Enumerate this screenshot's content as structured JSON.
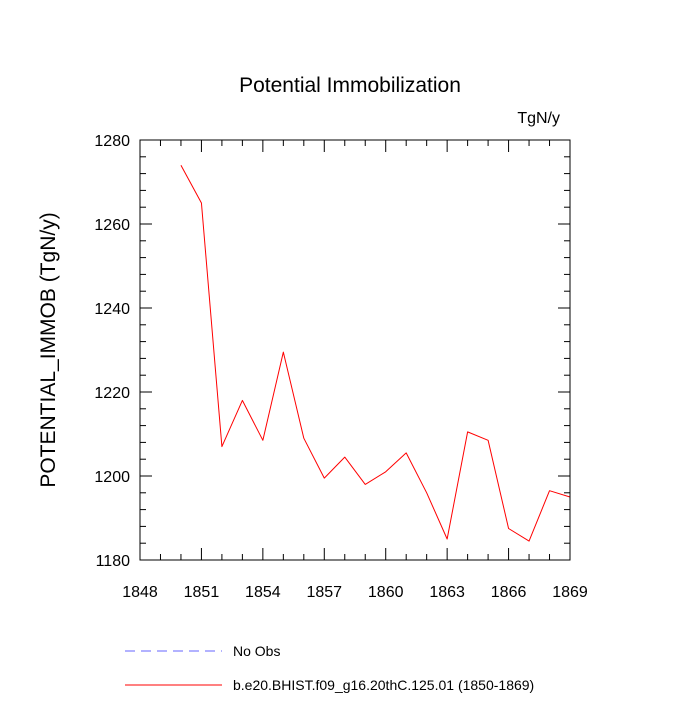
{
  "chart_data": {
    "type": "line",
    "title": "Potential Immobilization",
    "units_label": "TgN/y",
    "xlabel": "",
    "ylabel": "POTENTIAL_IMMOB  (TgN/y)",
    "xlim": [
      1848,
      1869
    ],
    "ylim": [
      1180,
      1280
    ],
    "x_ticks": [
      1848,
      1851,
      1854,
      1857,
      1860,
      1863,
      1866,
      1869
    ],
    "y_ticks": [
      1180,
      1200,
      1220,
      1240,
      1260,
      1280
    ],
    "x_minor_step": 1,
    "y_minor_step": 4,
    "grid": false,
    "legend_position": "bottom",
    "series": [
      {
        "name": "No Obs",
        "color": "#6666ff",
        "dash": "dashed",
        "x": [],
        "y": []
      },
      {
        "name": "b.e20.BHIST.f09_g16.20thC.125.01 (1850-1869)",
        "color": "#ff0000",
        "dash": "solid",
        "x": [
          1850,
          1851,
          1852,
          1853,
          1854,
          1855,
          1856,
          1857,
          1858,
          1859,
          1860,
          1861,
          1862,
          1863,
          1864,
          1865,
          1866,
          1867,
          1868,
          1869
        ],
        "y": [
          1274,
          1265,
          1207,
          1218,
          1208.5,
          1229.5,
          1209,
          1199.5,
          1204.5,
          1198,
          1201,
          1205.5,
          1196,
          1185,
          1210.5,
          1208.5,
          1187.5,
          1184.5,
          1196.5,
          1195
        ]
      }
    ]
  }
}
